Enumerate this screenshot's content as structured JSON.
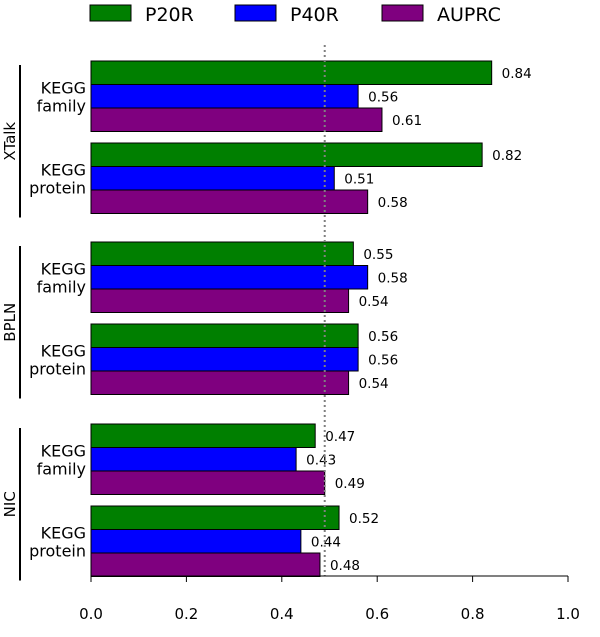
{
  "chart_data": {
    "type": "bar",
    "orientation": "horizontal",
    "title": "",
    "xlabel": "",
    "ylabel": "",
    "xlim": [
      0,
      1.0
    ],
    "xticks": [
      0.0,
      0.2,
      0.4,
      0.6,
      0.8,
      1.0
    ],
    "xtick_labels": [
      "0.0",
      "0.2",
      "0.4",
      "0.6",
      "0.8",
      "1.0"
    ],
    "reference_line": 0.49,
    "legend_position": "top",
    "series": [
      {
        "name": "P20R",
        "color": "#007f00"
      },
      {
        "name": "P40R",
        "color": "#0000ff"
      },
      {
        "name": "AUPRC",
        "color": "#7f007f"
      }
    ],
    "groups": [
      {
        "name": "XTalk",
        "categories": [
          {
            "label_lines": [
              "KEGG",
              "family"
            ],
            "values": [
              0.84,
              0.56,
              0.61
            ],
            "labels": [
              "0.84",
              "0.56",
              "0.61"
            ]
          },
          {
            "label_lines": [
              "KEGG",
              "protein"
            ],
            "values": [
              0.82,
              0.51,
              0.58
            ],
            "labels": [
              "0.82",
              "0.51",
              "0.58"
            ]
          }
        ]
      },
      {
        "name": "BPLN",
        "categories": [
          {
            "label_lines": [
              "KEGG",
              "family"
            ],
            "values": [
              0.55,
              0.58,
              0.54
            ],
            "labels": [
              "0.55",
              "0.58",
              "0.54"
            ]
          },
          {
            "label_lines": [
              "KEGG",
              "protein"
            ],
            "values": [
              0.56,
              0.56,
              0.54
            ],
            "labels": [
              "0.56",
              "0.56",
              "0.54"
            ]
          }
        ]
      },
      {
        "name": "NIC",
        "categories": [
          {
            "label_lines": [
              "KEGG",
              "family"
            ],
            "values": [
              0.47,
              0.43,
              0.49
            ],
            "labels": [
              "0.47",
              "0.43",
              "0.49"
            ]
          },
          {
            "label_lines": [
              "KEGG",
              "protein"
            ],
            "values": [
              0.52,
              0.44,
              0.48
            ],
            "labels": [
              "0.52",
              "0.44",
              "0.48"
            ]
          }
        ]
      }
    ]
  }
}
